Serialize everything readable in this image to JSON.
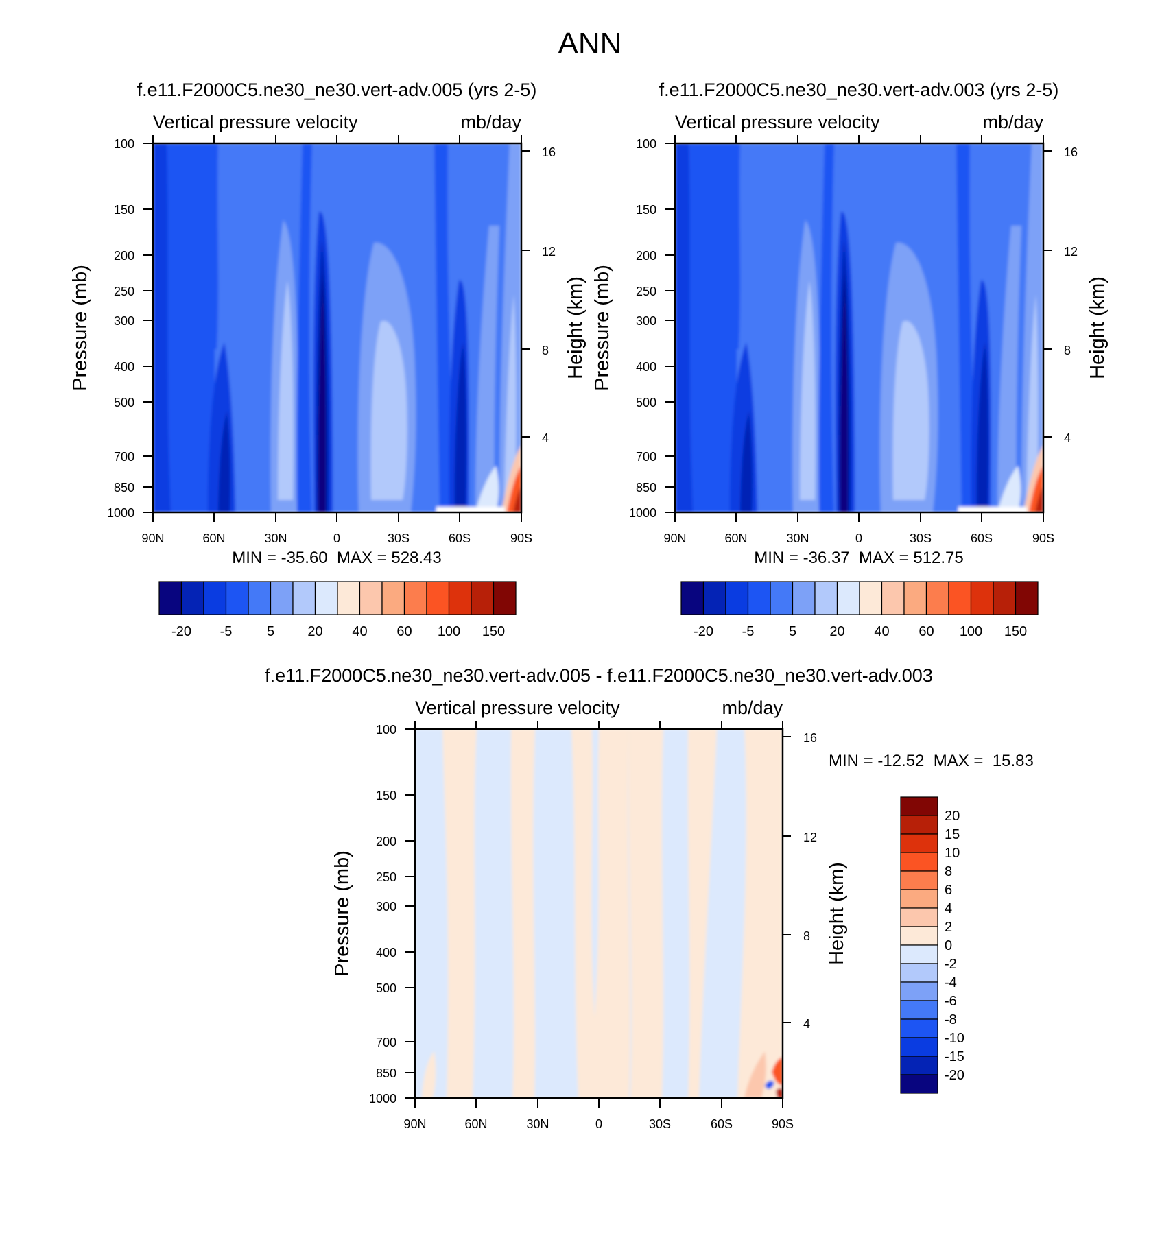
{
  "page_title": "ANN",
  "chart_data": [
    {
      "type": "heatmap",
      "title": "f.e11.F2000C5.ne30_ne30.vert-adv.005 (yrs 2-5)",
      "subtitle_left": "Vertical pressure velocity",
      "subtitle_right": "mb/day",
      "ylabel": "Pressure (mb)",
      "ylabel_right": "Height (km)",
      "yticks": [
        "100",
        "150",
        "200",
        "250",
        "300",
        "400",
        "500",
        "700",
        "850",
        "1000"
      ],
      "yticks_right": [
        "16",
        "12",
        "8",
        "4"
      ],
      "xticks": [
        "90N",
        "60N",
        "30N",
        "0",
        "30S",
        "60S",
        "90S"
      ],
      "stats": "MIN = -35.60  MAX = 528.43",
      "colorbar": {
        "orientation": "horizontal",
        "colors": [
          "#08057f",
          "#0423b5",
          "#0a3ce1",
          "#1d55f3",
          "#4479f7",
          "#7da1f7",
          "#b2c9fb",
          "#dce9fd",
          "#fde9d8",
          "#fcc7ad",
          "#fbaa80",
          "#fc7d4d",
          "#fb5423",
          "#dd320c",
          "#b72008",
          "#810604"
        ],
        "labels": [
          "-20",
          "-5",
          "5",
          "20",
          "40",
          "60",
          "100",
          "150"
        ]
      },
      "field_bands": [
        {
          "lat": "90N-60N",
          "level": 4
        },
        {
          "lat": "60N-40N",
          "level": 3
        },
        {
          "lat": "40N-28N",
          "level": 4
        },
        {
          "lat": "28N-18N",
          "level": 6
        },
        {
          "lat": "18N-2N",
          "level": 3
        },
        {
          "lat": "10N-5N",
          "level": 0
        },
        {
          "lat": "2N-20S",
          "level": 4
        },
        {
          "lat": "20S-45S",
          "level": 6
        },
        {
          "lat": "45S-55S",
          "level": 4
        },
        {
          "lat": "55S-68S",
          "level": 2
        },
        {
          "lat": "68S-90S",
          "level": 5
        }
      ]
    },
    {
      "type": "heatmap",
      "title": "f.e11.F2000C5.ne30_ne30.vert-adv.003 (yrs 2-5)",
      "subtitle_left": "Vertical pressure velocity",
      "subtitle_right": "mb/day",
      "ylabel": "Pressure (mb)",
      "ylabel_right": "Height (km)",
      "yticks": [
        "100",
        "150",
        "200",
        "250",
        "300",
        "400",
        "500",
        "700",
        "850",
        "1000"
      ],
      "yticks_right": [
        "16",
        "12",
        "8",
        "4"
      ],
      "xticks": [
        "90N",
        "60N",
        "30N",
        "0",
        "30S",
        "60S",
        "90S"
      ],
      "stats": "MIN = -36.37  MAX = 512.75",
      "colorbar": {
        "orientation": "horizontal",
        "colors": [
          "#08057f",
          "#0423b5",
          "#0a3ce1",
          "#1d55f3",
          "#4479f7",
          "#7da1f7",
          "#b2c9fb",
          "#dce9fd",
          "#fde9d8",
          "#fcc7ad",
          "#fbaa80",
          "#fc7d4d",
          "#fb5423",
          "#dd320c",
          "#b72008",
          "#810604"
        ],
        "labels": [
          "-20",
          "-5",
          "5",
          "20",
          "40",
          "60",
          "100",
          "150"
        ]
      }
    },
    {
      "type": "heatmap",
      "title": "f.e11.F2000C5.ne30_ne30.vert-adv.005 - f.e11.F2000C5.ne30_ne30.vert-adv.003",
      "subtitle_left": "Vertical pressure velocity",
      "subtitle_right": "mb/day",
      "ylabel": "Pressure (mb)",
      "ylabel_right": "Height (km)",
      "yticks": [
        "100",
        "150",
        "200",
        "250",
        "300",
        "400",
        "500",
        "700",
        "850",
        "1000"
      ],
      "yticks_right": [
        "16",
        "12",
        "8",
        "4"
      ],
      "xticks": [
        "90N",
        "60N",
        "30N",
        "0",
        "30S",
        "60S",
        "90S"
      ],
      "stats": "MIN = -12.52  MAX =  15.83",
      "colorbar": {
        "orientation": "vertical",
        "colors_top_to_bottom": [
          "#810604",
          "#b72008",
          "#dd320c",
          "#fb5423",
          "#fc7d4d",
          "#fbaa80",
          "#fcc7ad",
          "#fde9d8",
          "#dce9fd",
          "#b2c9fb",
          "#7da1f7",
          "#4479f7",
          "#1d55f3",
          "#0a3ce1",
          "#0423b5",
          "#08057f"
        ],
        "labels_top_to_bottom": [
          "20",
          "15",
          "10",
          "8",
          "6",
          "4",
          "2",
          "0",
          "-2",
          "-4",
          "-6",
          "-8",
          "-10",
          "-15",
          "-20"
        ]
      },
      "field_bands": [
        {
          "lat": "90N-75N",
          "sign": "negative"
        },
        {
          "lat": "75N-60N",
          "sign": "positive"
        },
        {
          "lat": "60N-42N",
          "sign": "negative"
        },
        {
          "lat": "42N-30N",
          "sign": "positive"
        },
        {
          "lat": "30N-12N",
          "sign": "negative"
        },
        {
          "lat": "12N-8S",
          "sign": "positive"
        },
        {
          "lat": "8S-15S",
          "sign": "negative"
        },
        {
          "lat": "15S-28S",
          "sign": "positive"
        },
        {
          "lat": "28S-45S",
          "sign": "negative"
        },
        {
          "lat": "45S-60S",
          "sign": "positive"
        },
        {
          "lat": "60S-70S",
          "sign": "negative"
        },
        {
          "lat": "70S-90S",
          "sign": "positive"
        }
      ]
    }
  ]
}
